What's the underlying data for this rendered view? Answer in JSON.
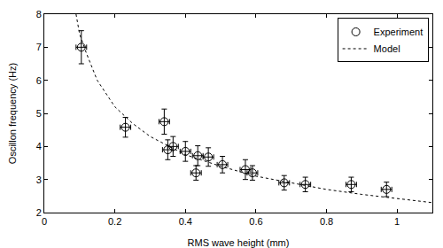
{
  "chart_data": {
    "type": "scatter",
    "xlabel": "RMS wave height (mm)",
    "ylabel": "Oscillon frequency (Hz)",
    "xlim": [
      0,
      1.1
    ],
    "ylim": [
      2,
      8
    ],
    "xticks": [
      0,
      0.2,
      0.4,
      0.6,
      0.8,
      1
    ],
    "yticks": [
      2,
      3,
      4,
      5,
      6,
      7,
      8
    ],
    "grid": false,
    "legend": "upper right",
    "series": [
      {
        "name": "Experiment",
        "type": "scatter",
        "marker": "circle-open",
        "color": "#000000",
        "x": [
          0.105,
          0.23,
          0.34,
          0.35,
          0.365,
          0.4,
          0.43,
          0.435,
          0.465,
          0.505,
          0.57,
          0.59,
          0.68,
          0.74,
          0.87,
          0.97
        ],
        "values": [
          7.0,
          4.58,
          4.75,
          3.9,
          4.0,
          3.85,
          3.2,
          3.72,
          3.68,
          3.45,
          3.3,
          3.2,
          2.9,
          2.85,
          2.85,
          2.7
        ],
        "x_error": [
          0.015,
          0.015,
          0.015,
          0.015,
          0.015,
          0.015,
          0.015,
          0.015,
          0.015,
          0.015,
          0.015,
          0.015,
          0.015,
          0.015,
          0.015,
          0.015
        ],
        "y_error": [
          0.5,
          0.3,
          0.38,
          0.3,
          0.3,
          0.3,
          0.22,
          0.3,
          0.28,
          0.25,
          0.3,
          0.22,
          0.22,
          0.22,
          0.22,
          0.22
        ]
      },
      {
        "name": "Model",
        "type": "line",
        "line_style": "dot",
        "color": "#000000",
        "x": [
          0.09,
          0.1,
          0.12,
          0.15,
          0.2,
          0.25,
          0.3,
          0.4,
          0.5,
          0.6,
          0.7,
          0.8,
          0.9,
          1.0,
          1.1
        ],
        "values": [
          8.0,
          7.4,
          6.8,
          6.0,
          5.2,
          4.7,
          4.3,
          3.75,
          3.4,
          3.1,
          2.9,
          2.7,
          2.55,
          2.42,
          2.3
        ]
      }
    ]
  }
}
